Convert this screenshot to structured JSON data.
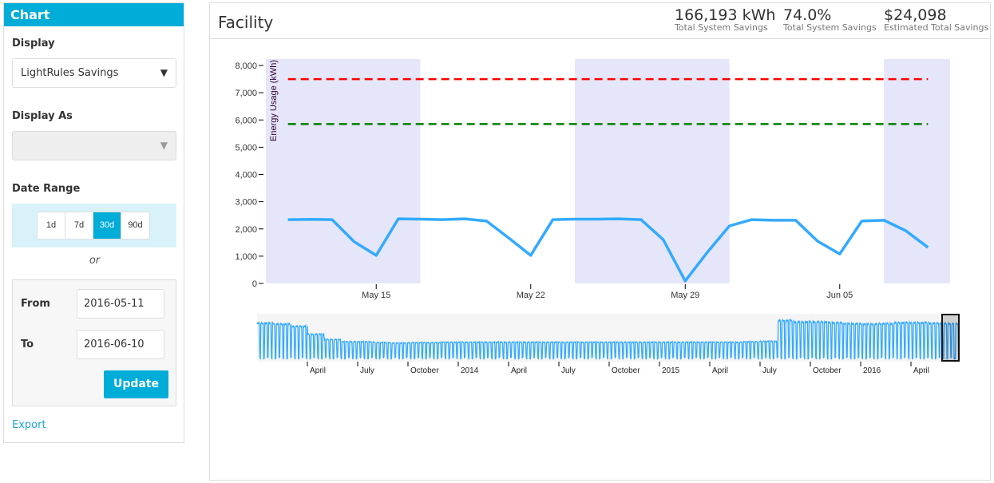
{
  "sidebar": {
    "header": "Chart",
    "display_label": "Display",
    "display_value": "LightRules Savings",
    "display_as_label": "Display As",
    "display_as_value": "",
    "date_range_label": "Date Range",
    "range_buttons": [
      "1d",
      "7d",
      "30d",
      "90d"
    ],
    "range_selected": "30d",
    "or_text": "or",
    "from_label": "From",
    "from_value": "2016-05-11",
    "to_label": "To",
    "to_value": "2016-06-10",
    "update_label": "Update",
    "export_label": "Export"
  },
  "main": {
    "title": "Facility",
    "stats": [
      {
        "value": "166,193 kWh",
        "label": "Total System Savings"
      },
      {
        "value": "74.0%",
        "label": "Total System Savings"
      },
      {
        "value": "$24,098",
        "label": "Estimated Total Savings"
      }
    ]
  },
  "chart_data": {
    "type": "line",
    "ylabel": "Energy Usage (kWh)",
    "ylim": [
      0,
      8000
    ],
    "yticks": [
      "0",
      "1,000",
      "2,000",
      "3,000",
      "4,000",
      "5,000",
      "6,000",
      "7,000",
      "8,000"
    ],
    "x_start": "2016-05-11",
    "xticks": [
      {
        "label": "May 15",
        "day": 4
      },
      {
        "label": "May 22",
        "day": 11
      },
      {
        "label": "May 29",
        "day": 18
      },
      {
        "label": "Jun 05",
        "day": 25
      }
    ],
    "shaded_day_ranges": [
      [
        -1,
        6
      ],
      [
        13,
        20
      ],
      [
        27,
        30
      ]
    ],
    "series": [
      {
        "name": "Energy Usage",
        "color": "#33aaff",
        "values": [
          2340,
          2350,
          2340,
          1530,
          1030,
          2370,
          2360,
          2340,
          2370,
          2290,
          1670,
          1030,
          2340,
          2360,
          2360,
          2370,
          2340,
          1610,
          90,
          1140,
          2110,
          2340,
          2320,
          2320,
          1550,
          1080,
          2290,
          2320,
          1930,
          1320
        ]
      }
    ],
    "reference_lines": [
      {
        "value": 7500,
        "color": "#ff0000"
      },
      {
        "value": 5850,
        "color": "#008000"
      }
    ],
    "navigator": {
      "start": "2013-01",
      "xticks": [
        "April",
        "July",
        "October",
        "2014",
        "April",
        "July",
        "October",
        "2015",
        "April",
        "July",
        "October",
        "2016",
        "April"
      ],
      "monthly_level": [
        0.87,
        0.85,
        0.8,
        0.62,
        0.5,
        0.45,
        0.45,
        0.43,
        0.42,
        0.43,
        0.43,
        0.44,
        0.44,
        0.44,
        0.44,
        0.44,
        0.44,
        0.44,
        0.44,
        0.44,
        0.44,
        0.44,
        0.44,
        0.44,
        0.44,
        0.44,
        0.44,
        0.44,
        0.44,
        0.45,
        0.46,
        0.93,
        0.9,
        0.9,
        0.88,
        0.86,
        0.85,
        0.86,
        0.88,
        0.88,
        0.87,
        0.86
      ],
      "selected_range": [
        "2016-05-11",
        "2016-06-10"
      ]
    }
  }
}
